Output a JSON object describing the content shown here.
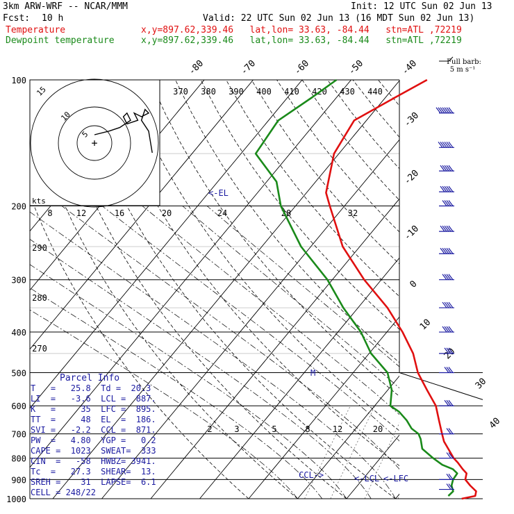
{
  "header": {
    "model": "3km ARW-WRF -- NCAR/MMM",
    "init": "Init: 12 UTC Sun 02 Jun 13",
    "fcst_label": "Fcst:",
    "fcst_value": "10 h",
    "valid": "Valid: 22 UTC Sun 02 Jun 13 (16 MDT Sun 02 Jun 13)",
    "temp_label": "Temperature",
    "temp_loc": "x,y=897.62,339.46   lat,lon= 33.63, -84.44   stn=ATL ,72219",
    "dew_label": "Dewpoint temperature",
    "dew_loc": "x,y=897.62,339.46   lat,lon= 33.63, -84.44   stn=ATL ,72219"
  },
  "colors": {
    "temperature": "#e01010",
    "dewpoint": "#1a8a1a",
    "hodograph_label": "#1a1aa0",
    "wind_barbs": "#1a1aa0",
    "grid": "#000000"
  },
  "wind_legend": {
    "line1": "Full barb:",
    "line2": "5 m s⁻¹"
  },
  "parcel_info": {
    "title": "Parcel Info",
    "rows": [
      "T   =   25.8  Td =  20.3",
      "LI  =   -3.6  LCL =  887.",
      "K   =     35  LFC =  895.",
      "TT  =     48  EL  =  186.",
      "SVI =   -2.2  CCL =  871.",
      "PW  =   4.80  YGP =   0.2",
      "CAPE =  1023  SWEAT=  333",
      "CIN  =   -58  HWBZ= 3941.",
      "Tc  =   27.3  SHEAR=  13.",
      "SREH =    31  LAPSE=  6.1",
      "CELL = 248/22"
    ]
  },
  "annotations": {
    "el": "<-EL",
    "ccl": "CCL->",
    "lcl": "<-LCL",
    "lfc": "<-LFC",
    "m": "M"
  },
  "chart_data": {
    "type": "line",
    "subtype": "skew-T log-P",
    "pressure_levels": [
      100,
      200,
      300,
      400,
      500,
      600,
      700,
      800,
      900,
      1000
    ],
    "skewed_isotherm_labels": [
      "-80",
      "-70",
      "-60",
      "-50",
      "-40",
      "-30",
      "-20",
      "-10",
      "0",
      "10",
      "20",
      "30",
      "40"
    ],
    "theta_labels": [
      "370",
      "380",
      "390",
      "400",
      "410",
      "420",
      "430",
      "440"
    ],
    "theta_left_labels": [
      "290",
      "280",
      "270"
    ],
    "mixing_ratio_labels": [
      "2",
      "3",
      "5",
      "8",
      "12",
      "20"
    ],
    "hodograph_rings": [
      "5",
      "10",
      "15"
    ],
    "hodograph_speed_axis": [
      "8",
      "12",
      "16",
      "20",
      "24",
      "28",
      "32"
    ],
    "hodograph_units": "kts",
    "series": [
      {
        "name": "Temperature",
        "points": [
          [
            1000,
            23.5
          ],
          [
            985,
            25.8
          ],
          [
            960,
            25.2
          ],
          [
            930,
            23.0
          ],
          [
            900,
            21.0
          ],
          [
            870,
            20.2
          ],
          [
            850,
            18.7
          ],
          [
            820,
            16.6
          ],
          [
            800,
            15.0
          ],
          [
            770,
            13.0
          ],
          [
            730,
            10.2
          ],
          [
            700,
            8.5
          ],
          [
            650,
            5.6
          ],
          [
            600,
            2.5
          ],
          [
            550,
            -2.0
          ],
          [
            500,
            -6.8
          ],
          [
            450,
            -11.0
          ],
          [
            400,
            -16.8
          ],
          [
            350,
            -24.0
          ],
          [
            300,
            -33.5
          ],
          [
            250,
            -43.5
          ],
          [
            200,
            -53.0
          ],
          [
            186,
            -56.0
          ],
          [
            150,
            -61.0
          ],
          [
            125,
            -62.5
          ],
          [
            110,
            -58.0
          ],
          [
            100,
            -54.5
          ]
        ]
      },
      {
        "name": "Dewpoint temperature",
        "points": [
          [
            985,
            20.3
          ],
          [
            960,
            20.5
          ],
          [
            930,
            19.2
          ],
          [
            900,
            18.5
          ],
          [
            870,
            18.3
          ],
          [
            850,
            16.7
          ],
          [
            830,
            13.8
          ],
          [
            800,
            10.8
          ],
          [
            760,
            7.0
          ],
          [
            720,
            5.0
          ],
          [
            700,
            3.7
          ],
          [
            680,
            1.4
          ],
          [
            650,
            -1.0
          ],
          [
            620,
            -4.0
          ],
          [
            600,
            -6.8
          ],
          [
            550,
            -9.2
          ],
          [
            500,
            -13.0
          ],
          [
            450,
            -19.6
          ],
          [
            400,
            -25.3
          ],
          [
            350,
            -33.0
          ],
          [
            300,
            -41.0
          ],
          [
            250,
            -52.0
          ],
          [
            200,
            -63.0
          ],
          [
            175,
            -68.0
          ],
          [
            150,
            -77.0
          ],
          [
            125,
            -78.0
          ],
          [
            110,
            -75.0
          ],
          [
            100,
            -73.0
          ]
        ]
      }
    ],
    "hodograph_trace": [
      [
        0,
        0
      ],
      [
        4,
        1
      ],
      [
        7,
        2
      ],
      [
        10,
        4
      ],
      [
        9,
        6
      ],
      [
        8,
        5
      ],
      [
        9,
        3
      ],
      [
        12,
        4
      ],
      [
        11,
        6
      ],
      [
        13,
        5
      ],
      [
        15,
        6
      ],
      [
        14,
        7
      ],
      [
        13,
        4
      ],
      [
        15,
        1
      ],
      [
        16,
        -5
      ]
    ],
    "wind_barbs_speed_ms": [
      {
        "p": 120,
        "speed": 35
      },
      {
        "p": 145,
        "speed": 30
      },
      {
        "p": 165,
        "speed": 25
      },
      {
        "p": 185,
        "speed": 25
      },
      {
        "p": 200,
        "speed": 20
      },
      {
        "p": 230,
        "speed": 25
      },
      {
        "p": 260,
        "speed": 25
      },
      {
        "p": 300,
        "speed": 20
      },
      {
        "p": 350,
        "speed": 20
      },
      {
        "p": 400,
        "speed": 20
      },
      {
        "p": 450,
        "speed": 15
      },
      {
        "p": 500,
        "speed": 15
      },
      {
        "p": 600,
        "speed": 15
      },
      {
        "p": 700,
        "speed": 10
      },
      {
        "p": 800,
        "speed": 10
      },
      {
        "p": 900,
        "speed": 10
      },
      {
        "p": 950,
        "speed": 10
      }
    ]
  }
}
